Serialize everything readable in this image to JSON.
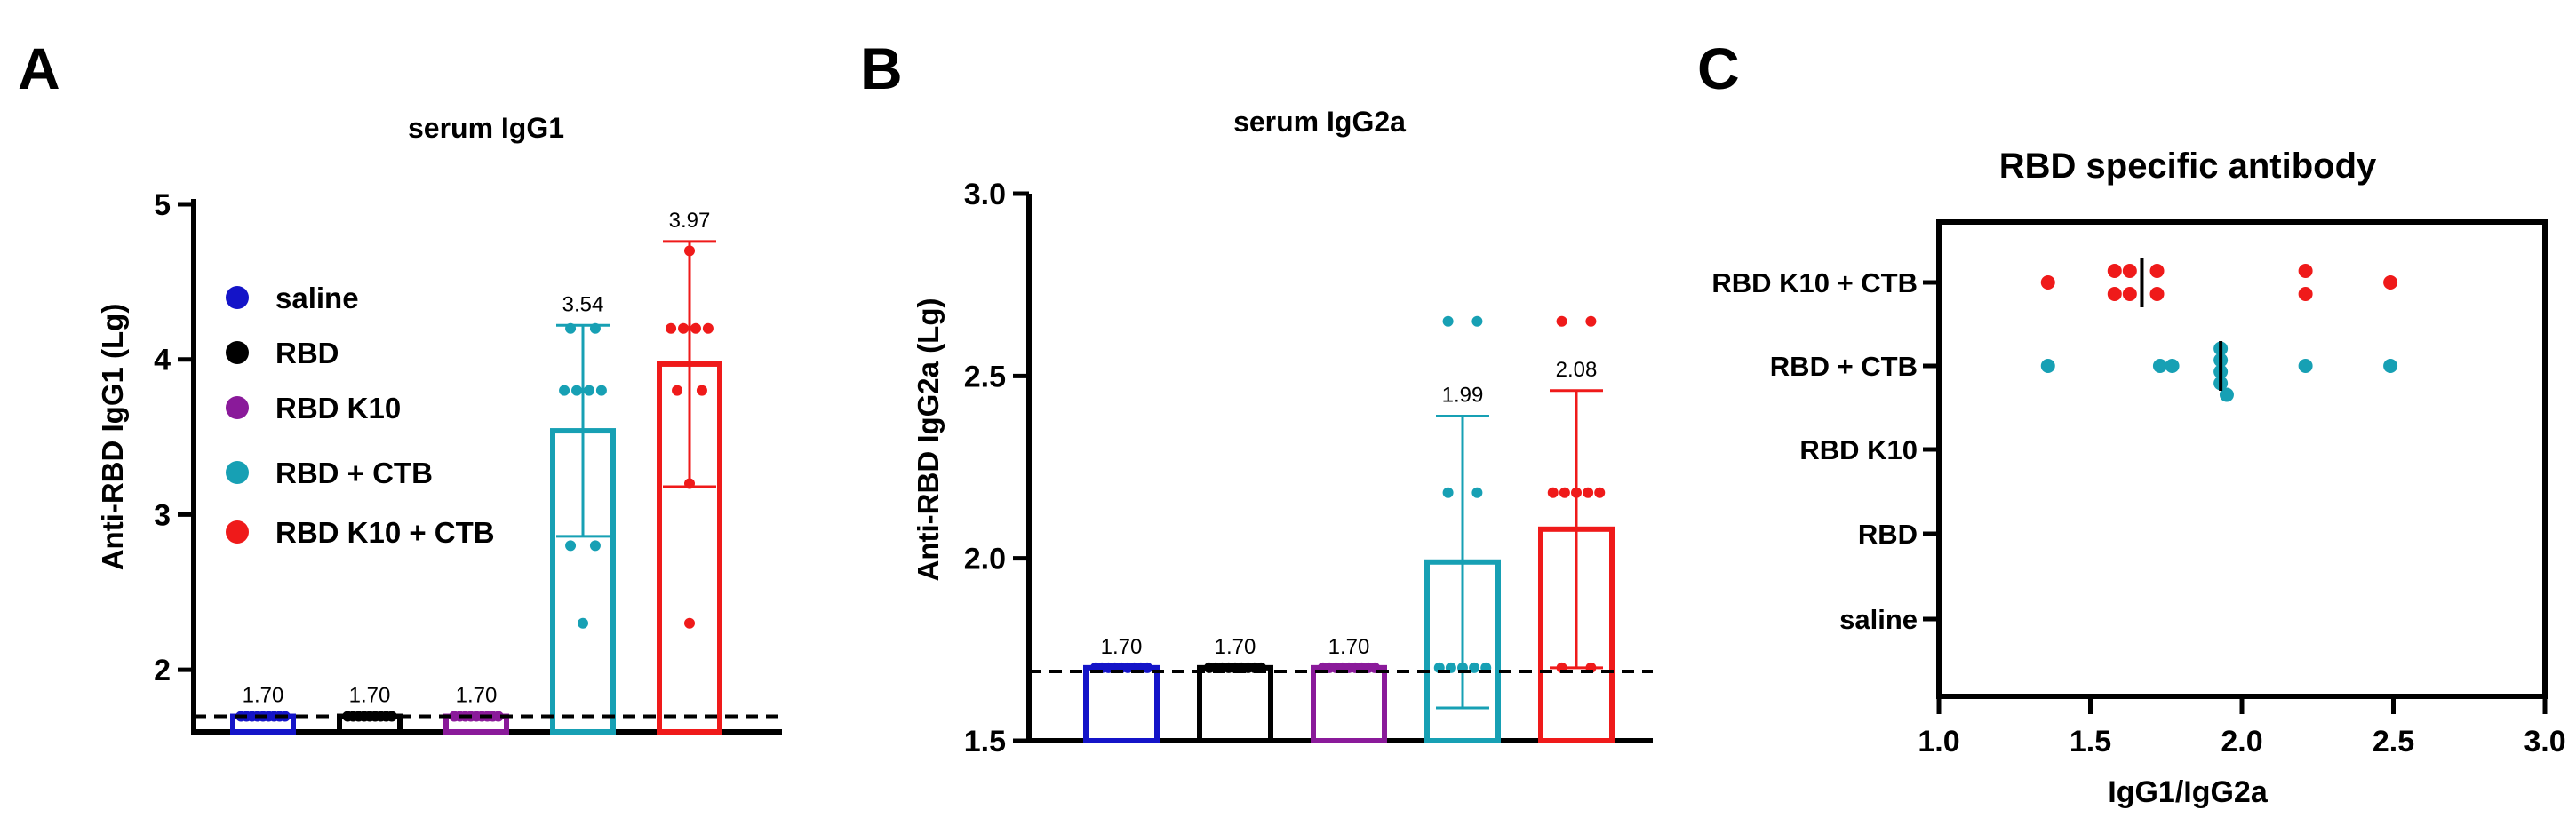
{
  "colors": {
    "saline": "#1414c8",
    "RBD": "#000000",
    "RBD K10": "#8a1a9a",
    "RBD + CTB": "#17a0b4",
    "RBD K10 + CTB": "#ef1a1a"
  },
  "legend": [
    "saline",
    "RBD",
    "RBD K10",
    "RBD + CTB",
    "RBD K10 + CTB"
  ],
  "chart_data": [
    {
      "panel": "A",
      "type": "bar",
      "title": "serum IgG1",
      "ylabel": "Anti-RBD IgG1 (Lg)",
      "xlabel": "",
      "ylim": [
        1.6,
        5
      ],
      "yticks": [
        "2",
        "3",
        "4",
        "5"
      ],
      "yticks_values": [
        2,
        3,
        4,
        5
      ],
      "cutoff": 1.7,
      "categories": [
        "saline",
        "RBD",
        "RBD K10",
        "RBD + CTB",
        "RBD K10 + CTB"
      ],
      "values": [
        1.7,
        1.7,
        1.7,
        3.54,
        3.97
      ],
      "value_labels": [
        "1.70",
        "1.70",
        "1.70",
        "3.54",
        "3.97"
      ],
      "errors": [
        0,
        0,
        0,
        0.68,
        0.79
      ],
      "points": [
        [
          1.7,
          1.7,
          1.7,
          1.7,
          1.7,
          1.7,
          1.7,
          1.7,
          1.7
        ],
        [
          1.7,
          1.7,
          1.7,
          1.7,
          1.7,
          1.7,
          1.7,
          1.7,
          1.7
        ],
        [
          1.7,
          1.7,
          1.7,
          1.7,
          1.7,
          1.7,
          1.7,
          1.7,
          1.7
        ],
        [
          4.2,
          4.2,
          3.8,
          3.8,
          3.8,
          3.8,
          2.8,
          2.8,
          2.3
        ],
        [
          4.7,
          4.2,
          4.2,
          4.2,
          4.2,
          3.8,
          3.8,
          3.2,
          2.3
        ]
      ]
    },
    {
      "panel": "B",
      "type": "bar",
      "title": "serum IgG2a",
      "ylabel": "Anti-RBD IgG2a (Lg)",
      "xlabel": "",
      "ylim": [
        1.5,
        3.0
      ],
      "yticks": [
        "1.5",
        "2.0",
        "2.5",
        "3.0"
      ],
      "yticks_values": [
        1.5,
        2.0,
        2.5,
        3.0
      ],
      "cutoff": 1.69,
      "categories": [
        "saline",
        "RBD",
        "RBD K10",
        "RBD + CTB",
        "RBD K10 + CTB"
      ],
      "values": [
        1.7,
        1.7,
        1.7,
        1.99,
        2.08
      ],
      "value_labels": [
        "1.70",
        "1.70",
        "1.70",
        "1.99",
        "2.08"
      ],
      "errors": [
        0,
        0,
        0,
        0.4,
        0.38
      ],
      "points": [
        [
          1.7,
          1.7,
          1.7,
          1.7,
          1.7,
          1.7,
          1.7,
          1.7,
          1.7
        ],
        [
          1.7,
          1.7,
          1.7,
          1.7,
          1.7,
          1.7,
          1.7,
          1.7,
          1.7
        ],
        [
          1.7,
          1.7,
          1.7,
          1.7,
          1.7,
          1.7,
          1.7,
          1.7,
          1.7
        ],
        [
          2.65,
          2.65,
          2.18,
          2.18,
          1.7,
          1.7,
          1.7,
          1.7,
          1.7
        ],
        [
          2.65,
          2.65,
          2.18,
          2.18,
          2.18,
          2.18,
          2.18,
          1.7,
          1.7
        ]
      ]
    },
    {
      "panel": "C",
      "type": "scatter",
      "title": "RBD specific antibody",
      "xlabel": "IgG1/IgG2a",
      "ylabel": "",
      "xlim": [
        1.0,
        3.0
      ],
      "xticks": [
        "1.0",
        "1.5",
        "2.0",
        "2.5",
        "3.0"
      ],
      "xticks_values": [
        1.0,
        1.5,
        2.0,
        2.5,
        3.0
      ],
      "categories": [
        "RBD K10 + CTB",
        "RBD + CTB",
        "RBD K10",
        "RBD",
        "saline"
      ],
      "means": [
        1.67,
        1.93,
        null,
        null,
        null
      ],
      "series": [
        {
          "name": "RBD K10 + CTB",
          "x": [
            1.36,
            1.58,
            1.58,
            1.63,
            1.63,
            1.72,
            1.72,
            2.21,
            2.21,
            2.49
          ],
          "jitter": [
            0,
            -1,
            1,
            -1,
            1,
            -1,
            1,
            -1,
            1,
            0
          ]
        },
        {
          "name": "RBD + CTB",
          "x": [
            1.36,
            1.73,
            1.77,
            1.93,
            1.93,
            1.93,
            1.93,
            1.95,
            2.21,
            2.49
          ],
          "jitter": [
            0,
            0,
            0,
            -1.5,
            -0.5,
            0.5,
            1.5,
            2.5,
            0,
            0
          ]
        }
      ]
    }
  ]
}
